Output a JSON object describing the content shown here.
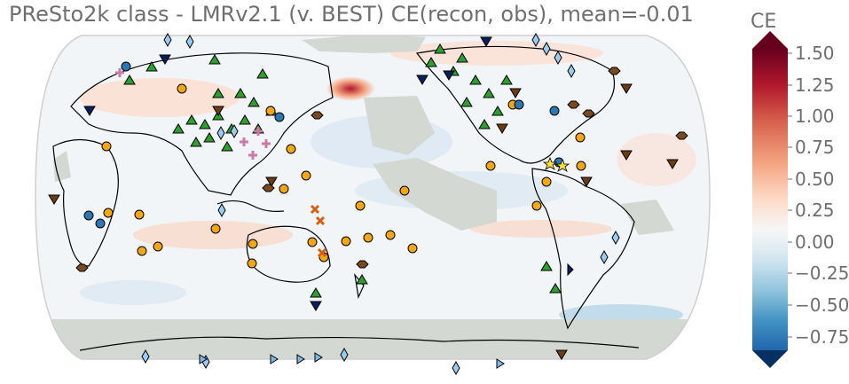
{
  "title": "PReSto2k class - LMRv2.1 (v. BEST) CE(recon, obs), mean=-0.01",
  "colorbar": {
    "label": "CE",
    "ticks": [
      "1.50",
      "1.25",
      "1.00",
      "0.75",
      "0.50",
      "0.25",
      "0.00",
      "−0.25",
      "−0.50",
      "−0.75"
    ],
    "colors": [
      "#67001f",
      "#b2182b",
      "#d6604d",
      "#f4a582",
      "#fddbc7",
      "#f7f7f7",
      "#d1e5f0",
      "#92c5de",
      "#4393c3",
      "#2166ac",
      "#053061"
    ]
  },
  "map": {
    "projection": "Robinson (Pacific-centered)",
    "ocean_color": "#f2f5f8",
    "masked_color": "#d3d8d3",
    "coastline_color": "#000000"
  },
  "markers": {
    "green-triangle": "#2ca02c",
    "orange-circle": "#f5a70f",
    "blue-circle": "#2a78b4",
    "light-blue-diamond": "#9ccbf0",
    "navy-triangle-down": "#0b1f5c",
    "brown-triangle-down": "#6b3b12",
    "brown-hexagon": "#7a4a1e",
    "pink-plus": "#cc79a7",
    "red-x": "#d95f0e",
    "yellow-star": "#ffe033",
    "light-blue-triangle-right": "#7fb8e8"
  }
}
